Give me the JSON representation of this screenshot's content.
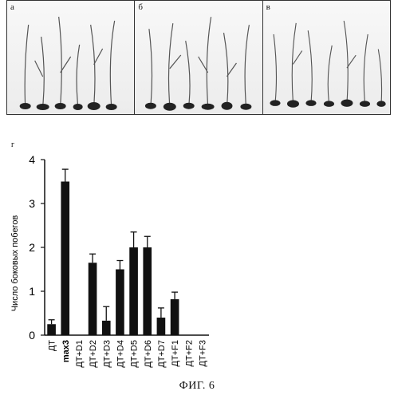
{
  "panels": [
    "а",
    "б",
    "в"
  ],
  "chart_label": "г",
  "caption": "ФИГ. 6",
  "chart_data": {
    "type": "bar",
    "ylabel": "Число боковых побегов",
    "xlabel": "",
    "ylim": [
      0,
      4
    ],
    "yticks": [
      0,
      1,
      2,
      3,
      4
    ],
    "categories": [
      "ДТ",
      "max3",
      "ДТ+D1",
      "ДТ+D2",
      "ДТ+D3",
      "ДТ+D4",
      "ДТ+D5",
      "ДТ+D6",
      "ДТ+D7",
      "ДТ+F1",
      "ДТ+F2",
      "ДТ+F3"
    ],
    "values": [
      0.25,
      3.5,
      0,
      1.65,
      0.33,
      1.5,
      2.0,
      2.0,
      0.4,
      0.82,
      null,
      null
    ],
    "errors": [
      0.1,
      0.28,
      0,
      0.2,
      0.32,
      0.2,
      0.35,
      0.25,
      0.22,
      0.16,
      null,
      null
    ],
    "bar_color": "#111111"
  }
}
